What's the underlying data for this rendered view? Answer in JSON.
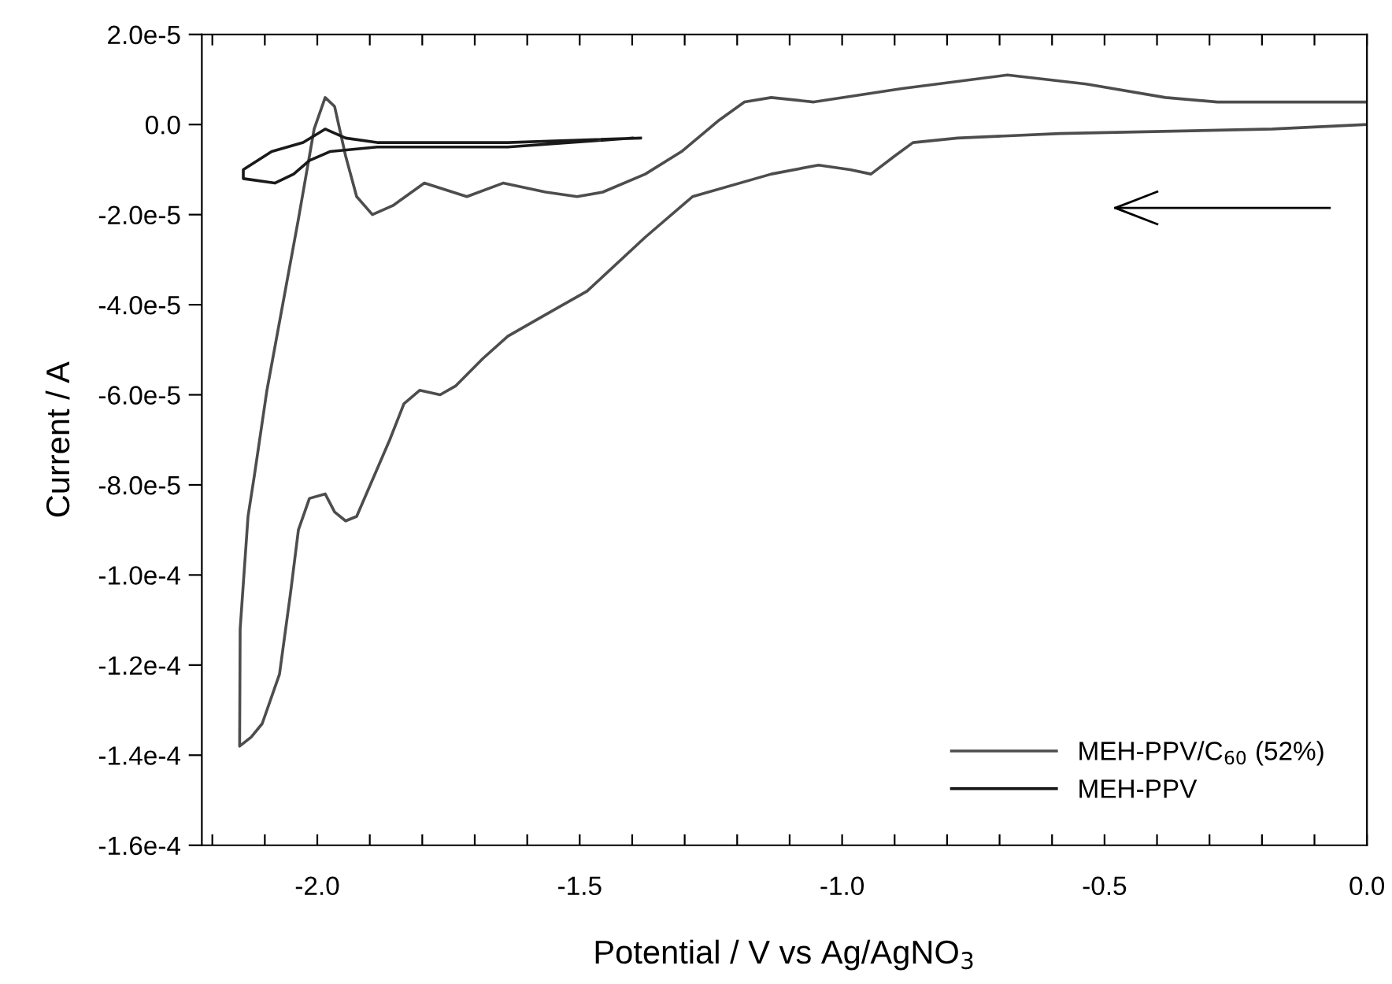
{
  "chart_data": {
    "type": "line",
    "xlabel": "Potential / V vs Ag/AgNO$_{3}$",
    "ylabel": "Current / A",
    "xlim": [
      -2.22,
      0.0
    ],
    "xticks": [
      {
        "value": -2.2,
        "label": null
      },
      {
        "value": -2.1,
        "label": null
      },
      {
        "value": -2.0,
        "label": "-2.0"
      },
      {
        "value": -1.9,
        "label": null
      },
      {
        "value": -1.8,
        "label": null
      },
      {
        "value": -1.7,
        "label": null
      },
      {
        "value": -1.6,
        "label": null
      },
      {
        "value": -1.5,
        "label": "-1.5"
      },
      {
        "value": -1.4,
        "label": null
      },
      {
        "value": -1.3,
        "label": null
      },
      {
        "value": -1.2,
        "label": null
      },
      {
        "value": -1.1,
        "label": null
      },
      {
        "value": -1.0,
        "label": "-1.0"
      },
      {
        "value": -0.9,
        "label": null
      },
      {
        "value": -0.8,
        "label": null
      },
      {
        "value": -0.7,
        "label": null
      },
      {
        "value": -0.6,
        "label": null
      },
      {
        "value": -0.5,
        "label": "-0.5"
      },
      {
        "value": -0.4,
        "label": null
      },
      {
        "value": -0.3,
        "label": null
      },
      {
        "value": -0.2,
        "label": null
      },
      {
        "value": -0.1,
        "label": null
      },
      {
        "value": 0.0,
        "label": "0.0"
      }
    ],
    "ylim": [
      -0.00016,
      2e-05
    ],
    "yticks": [
      {
        "value": 2e-05,
        "label": "2.0e-5"
      },
      {
        "value": 0,
        "label": "0.0"
      },
      {
        "value": -2e-05,
        "label": "-2.0e-5"
      },
      {
        "value": -4e-05,
        "label": "-4.0e-5"
      },
      {
        "value": -6e-05,
        "label": "-6.0e-5"
      },
      {
        "value": -8e-05,
        "label": "-8.0e-5"
      },
      {
        "value": -0.0001,
        "label": "-1.0e-4"
      },
      {
        "value": -0.00012,
        "label": "-1.2e-4"
      },
      {
        "value": -0.00014,
        "label": "-1.4e-4"
      },
      {
        "value": -0.00016,
        "label": "-1.6e-4"
      }
    ],
    "grid": false,
    "legend": "bottom right",
    "line_style": "solid",
    "marker": "none",
    "series": [
      {
        "name": "MEH-PPV/C$_{60}$ (52%)",
        "color": "#4d4d4d",
        "x": [
          0.0,
          -0.18,
          -0.585,
          -0.78,
          -0.865,
          -0.9,
          -0.945,
          -0.985,
          -1.045,
          -1.135,
          -1.285,
          -1.375,
          -1.486,
          -1.547,
          -1.637,
          -1.685,
          -1.736,
          -1.766,
          -1.805,
          -1.835,
          -1.862,
          -1.925,
          -1.946,
          -1.967,
          -1.985,
          -2.015,
          -2.036,
          -2.051,
          -2.072,
          -2.105,
          -2.126,
          -2.148,
          -2.147,
          -2.132,
          -2.12,
          -2.096,
          -2.066,
          -2.036,
          -2.006,
          -1.985,
          -1.967,
          -1.946,
          -1.925,
          -1.895,
          -1.856,
          -1.796,
          -1.715,
          -1.646,
          -1.565,
          -1.505,
          -1.456,
          -1.375,
          -1.306,
          -1.234,
          -1.186,
          -1.135,
          -1.054,
          -0.886,
          -0.685,
          -0.535,
          -0.384,
          -0.285,
          0.0
        ],
        "values": [
          0.0,
          -1e-06,
          -2e-06,
          -3e-06,
          -4e-06,
          -7e-06,
          -1.1e-05,
          -1e-05,
          -9e-06,
          -1.1e-05,
          -1.6e-05,
          -2.5e-05,
          -3.7e-05,
          -4.1e-05,
          -4.7e-05,
          -5.2e-05,
          -5.8e-05,
          -6e-05,
          -5.9e-05,
          -6.2e-05,
          -7e-05,
          -8.7e-05,
          -8.8e-05,
          -8.6e-05,
          -8.2e-05,
          -8.3e-05,
          -9e-05,
          -0.000104,
          -0.000122,
          -0.000133,
          -0.000136,
          -0.000138,
          -0.000112,
          -8.7e-05,
          -7.8e-05,
          -5.9e-05,
          -4e-05,
          -2.1e-05,
          -1e-06,
          6e-06,
          4e-06,
          -7e-06,
          -1.6e-05,
          -2e-05,
          -1.8e-05,
          -1.3e-05,
          -1.6e-05,
          -1.3e-05,
          -1.5e-05,
          -1.6e-05,
          -1.5e-05,
          -1.1e-05,
          -6e-06,
          1e-06,
          5e-06,
          6e-06,
          5e-06,
          8e-06,
          1.1e-05,
          9e-06,
          6e-06,
          5e-06,
          5e-06
        ]
      },
      {
        "name": "MEH-PPV",
        "color": "#1a1a1a",
        "x": [
          -1.384,
          -1.637,
          -1.886,
          -1.946,
          -1.985,
          -2.027,
          -2.087,
          -2.141,
          -2.141,
          -2.081,
          -2.045,
          -2.015,
          -1.976,
          -1.886,
          -1.637,
          -1.4
        ],
        "values": [
          -3e-06,
          -4e-06,
          -4e-06,
          -3e-06,
          -1e-06,
          -4e-06,
          -6e-06,
          -1e-05,
          -1.2e-05,
          -1.3e-05,
          -1.1e-05,
          -8e-06,
          -6e-06,
          -5e-06,
          -5e-06,
          -3e-06
        ]
      }
    ]
  }
}
